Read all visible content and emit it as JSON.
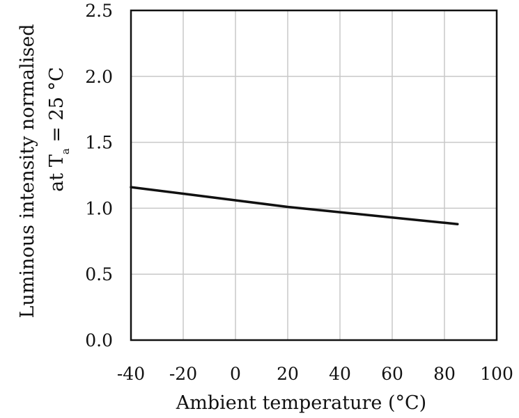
{
  "chart_data": {
    "type": "line",
    "title": "",
    "xlabel": "Ambient temperature (°C)",
    "ylabel_line1": "Luminous intensity normalised",
    "ylabel_line2": "at T",
    "ylabel_sub": "a",
    "ylabel_line2_tail": " = 25 °C",
    "xlim": [
      -40,
      100
    ],
    "ylim": [
      0.0,
      2.5
    ],
    "xticks": [
      -40,
      -20,
      0,
      20,
      40,
      60,
      80,
      100
    ],
    "yticks": [
      0.0,
      0.5,
      1.0,
      1.5,
      2.0,
      2.5
    ],
    "xtick_labels": [
      "-40",
      "-20",
      "0",
      "20",
      "40",
      "60",
      "80",
      "100"
    ],
    "ytick_labels": [
      "0.0",
      "0.5",
      "1.0",
      "1.5",
      "2.0",
      "2.5"
    ],
    "grid": true,
    "series": [
      {
        "color": "#111111",
        "x": [
          -40,
          -20,
          0,
          20,
          40,
          60,
          80,
          85
        ],
        "y": [
          1.16,
          1.11,
          1.06,
          1.01,
          0.97,
          0.93,
          0.89,
          0.88
        ]
      }
    ]
  }
}
